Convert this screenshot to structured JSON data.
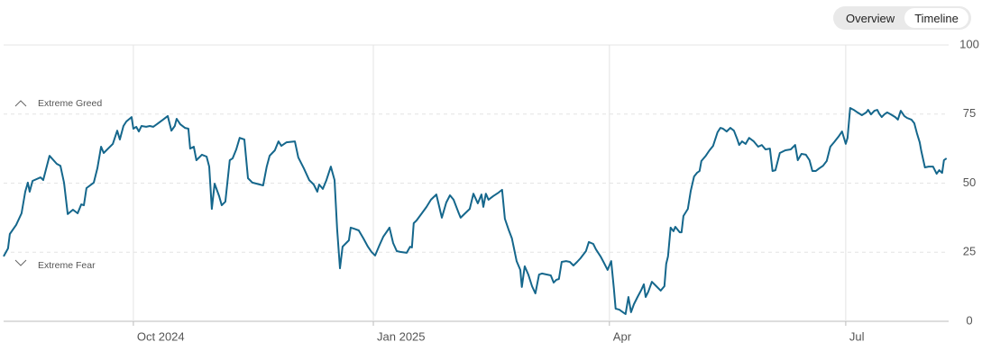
{
  "controls": {
    "options": [
      "Overview",
      "Timeline"
    ],
    "selected": 1
  },
  "chart_data": {
    "type": "line",
    "color": "#15678c",
    "annotations": {
      "upper": "Extreme Greed",
      "lower": "Extreme Fear"
    },
    "xlim": [
      0,
      362
    ],
    "xticks": [
      {
        "value": 49.8,
        "label": "Oct 2024"
      },
      {
        "value": 141.9,
        "label": "Jan 2025"
      },
      {
        "value": 232.5,
        "label": "Apr"
      },
      {
        "value": 323.2,
        "label": "Jul"
      }
    ],
    "ylim": [
      0,
      100
    ],
    "yticks": [
      0,
      25,
      50,
      75,
      100
    ],
    "grid": true,
    "x": [
      0,
      1.7,
      2.4,
      4.8,
      6.9,
      8.3,
      9.3,
      10.0,
      11.1,
      14.2,
      15.2,
      17.6,
      20.4,
      21.8,
      23.2,
      24.6,
      26.6,
      28.4,
      29.8,
      30.8,
      31.8,
      34.6,
      36.0,
      37.4,
      38.4,
      40.1,
      41.9,
      43.6,
      44.6,
      46.0,
      47.1,
      49.1,
      49.8,
      50.9,
      51.9,
      52.9,
      54.7,
      56.1,
      57.4,
      58.8,
      61.2,
      63.0,
      64.4,
      65.7,
      66.4,
      67.8,
      69.6,
      70.9,
      71.6,
      73.0,
      74.0,
      76.1,
      77.9,
      78.9,
      79.9,
      81.0,
      82.7,
      83.7,
      85.1,
      86.8,
      87.9,
      89.3,
      90.6,
      92.4,
      93.8,
      95.5,
      98.3,
      99.6,
      101.0,
      102.1,
      104.1,
      105.5,
      106.6,
      108.6,
      111.8,
      113.1,
      115.2,
      117.3,
      119.0,
      120.4,
      121.1,
      122.5,
      123.9,
      125.6,
      127.0,
      128.0,
      129.1,
      130.1,
      132.5,
      133.2,
      134.6,
      136.3,
      138.1,
      139.8,
      141.2,
      142.6,
      144.3,
      145.7,
      147.4,
      148.1,
      149.5,
      150.9,
      152.2,
      154.7,
      156.0,
      156.7,
      157.4,
      158.5,
      160.5,
      162.3,
      164.0,
      166.1,
      168.2,
      169.9,
      171.3,
      172.7,
      174.7,
      175.4,
      176.8,
      178.9,
      180.3,
      182.0,
      183.4,
      184.1,
      185.1,
      186.1,
      187.9,
      190.0,
      191.3,
      192.4,
      193.8,
      195.1,
      195.8,
      196.9,
      198.3,
      198.9,
      200.0,
      201.4,
      202.8,
      204.1,
      205.5,
      206.6,
      208.6,
      210.0,
      211.1,
      212.1,
      213.1,
      214.2,
      215.9,
      217.3,
      218.7,
      220.1,
      221.4,
      223.5,
      224.6,
      226.3,
      227.3,
      229.1,
      230.4,
      231.8,
      233.2,
      234.2,
      234.9,
      236.3,
      237.7,
      238.7,
      239.8,
      240.8,
      241.9,
      243.3,
      244.6,
      245.7,
      246.4,
      247.4,
      248.8,
      250.5,
      252.2,
      253.6,
      254.3,
      255.0,
      256.0,
      257.1,
      257.8,
      259.5,
      260.2,
      260.9,
      262.6,
      263.7,
      265.0,
      266.1,
      267.1,
      267.8,
      269.5,
      270.9,
      272.3,
      273.3,
      274.0,
      275.1,
      276.1,
      277.5,
      278.9,
      280.3,
      281.6,
      282.3,
      283.4,
      284.8,
      286.1,
      287.9,
      289.6,
      291.0,
      292.4,
      294.1,
      295.1,
      296.2,
      297.9,
      300.0,
      302.1,
      303.8,
      304.8,
      306.2,
      307.9,
      309.3,
      310.4,
      311.7,
      313.1,
      314.5,
      315.9,
      317.3,
      318.7,
      320.4,
      321.8,
      323.2,
      323.9,
      324.9,
      326.3,
      327.7,
      329.4,
      331.1,
      331.8,
      332.9,
      334.2,
      335.3,
      336.0,
      337.0,
      338.0,
      339.1,
      340.5,
      342.2,
      343.2,
      344.3,
      345.7,
      346.7,
      348.4,
      349.5,
      350.5,
      351.6,
      352.2,
      353.6,
      355.0,
      356.7,
      358.1,
      359.1,
      360.2,
      360.9,
      361.9
    ],
    "values": [
      23.5,
      26.4,
      31.6,
      34.9,
      39.1,
      46.9,
      50.2,
      46.9,
      50.8,
      52.1,
      51.1,
      59.9,
      57.0,
      56.3,
      50.2,
      38.8,
      40.4,
      39.1,
      42.3,
      42.0,
      48.2,
      50.2,
      55.4,
      63.2,
      60.9,
      62.5,
      64.2,
      69.0,
      65.8,
      70.7,
      72.3,
      73.9,
      69.7,
      70.4,
      68.7,
      70.7,
      70.4,
      70.7,
      70.4,
      71.3,
      73.0,
      74.3,
      69.0,
      70.7,
      73.3,
      71.3,
      70.0,
      69.7,
      62.5,
      63.2,
      58.3,
      60.3,
      59.6,
      56.0,
      40.7,
      49.8,
      45.3,
      42.0,
      43.3,
      58.3,
      59.0,
      62.2,
      66.4,
      65.8,
      51.8,
      50.2,
      49.5,
      49.2,
      56.0,
      59.9,
      61.9,
      65.1,
      63.5,
      64.8,
      65.1,
      59.3,
      55.4,
      51.1,
      49.5,
      46.9,
      49.5,
      47.9,
      51.1,
      56.0,
      51.1,
      33.2,
      19.2,
      27.0,
      29.3,
      33.9,
      33.5,
      32.9,
      30.0,
      27.0,
      25.1,
      23.8,
      27.7,
      30.6,
      32.9,
      33.9,
      28.3,
      25.4,
      25.1,
      24.8,
      27.0,
      26.7,
      35.5,
      36.5,
      39.1,
      41.4,
      44.0,
      45.9,
      37.5,
      43.0,
      45.6,
      44.0,
      39.1,
      37.5,
      38.8,
      40.7,
      46.2,
      42.7,
      45.9,
      41.4,
      46.2,
      44.0,
      45.3,
      46.6,
      47.6,
      37.1,
      33.2,
      30.0,
      26.7,
      21.8,
      18.6,
      12.4,
      19.9,
      16.9,
      12.7,
      10.1,
      16.9,
      17.3,
      16.9,
      16.6,
      14.0,
      15.0,
      15.3,
      21.5,
      21.8,
      21.5,
      20.2,
      21.5,
      22.8,
      25.4,
      28.7,
      28.0,
      26.1,
      23.5,
      21.2,
      18.6,
      21.8,
      12.1,
      4.6,
      4.2,
      3.3,
      2.6,
      8.8,
      3.3,
      6.2,
      8.8,
      11.1,
      13.4,
      8.8,
      10.7,
      14.3,
      12.7,
      11.1,
      12.7,
      20.8,
      23.5,
      33.9,
      32.6,
      34.2,
      32.2,
      32.2,
      38.1,
      40.7,
      47.2,
      52.4,
      53.7,
      54.4,
      58.0,
      59.9,
      61.9,
      63.5,
      66.4,
      68.4,
      70.0,
      69.7,
      68.7,
      70.0,
      69.0,
      65.8,
      63.8,
      65.1,
      64.2,
      66.4,
      65.1,
      63.2,
      63.8,
      62.2,
      62.5,
      54.4,
      54.7,
      60.9,
      61.9,
      62.2,
      63.8,
      58.3,
      60.6,
      60.3,
      58.3,
      54.4,
      54.4,
      55.4,
      56.3,
      58.0,
      63.2,
      64.8,
      66.8,
      68.7,
      64.2,
      66.4,
      77.2,
      76.5,
      75.6,
      74.6,
      75.6,
      76.5,
      74.9,
      76.2,
      76.5,
      75.2,
      73.9,
      74.9,
      75.6,
      74.9,
      73.9,
      73.0,
      76.2,
      74.3,
      73.6,
      73.0,
      71.7,
      68.1,
      64.8,
      61.6,
      55.7,
      56.0,
      56.0,
      53.4,
      54.7,
      53.7,
      58.3,
      59.0
    ]
  }
}
